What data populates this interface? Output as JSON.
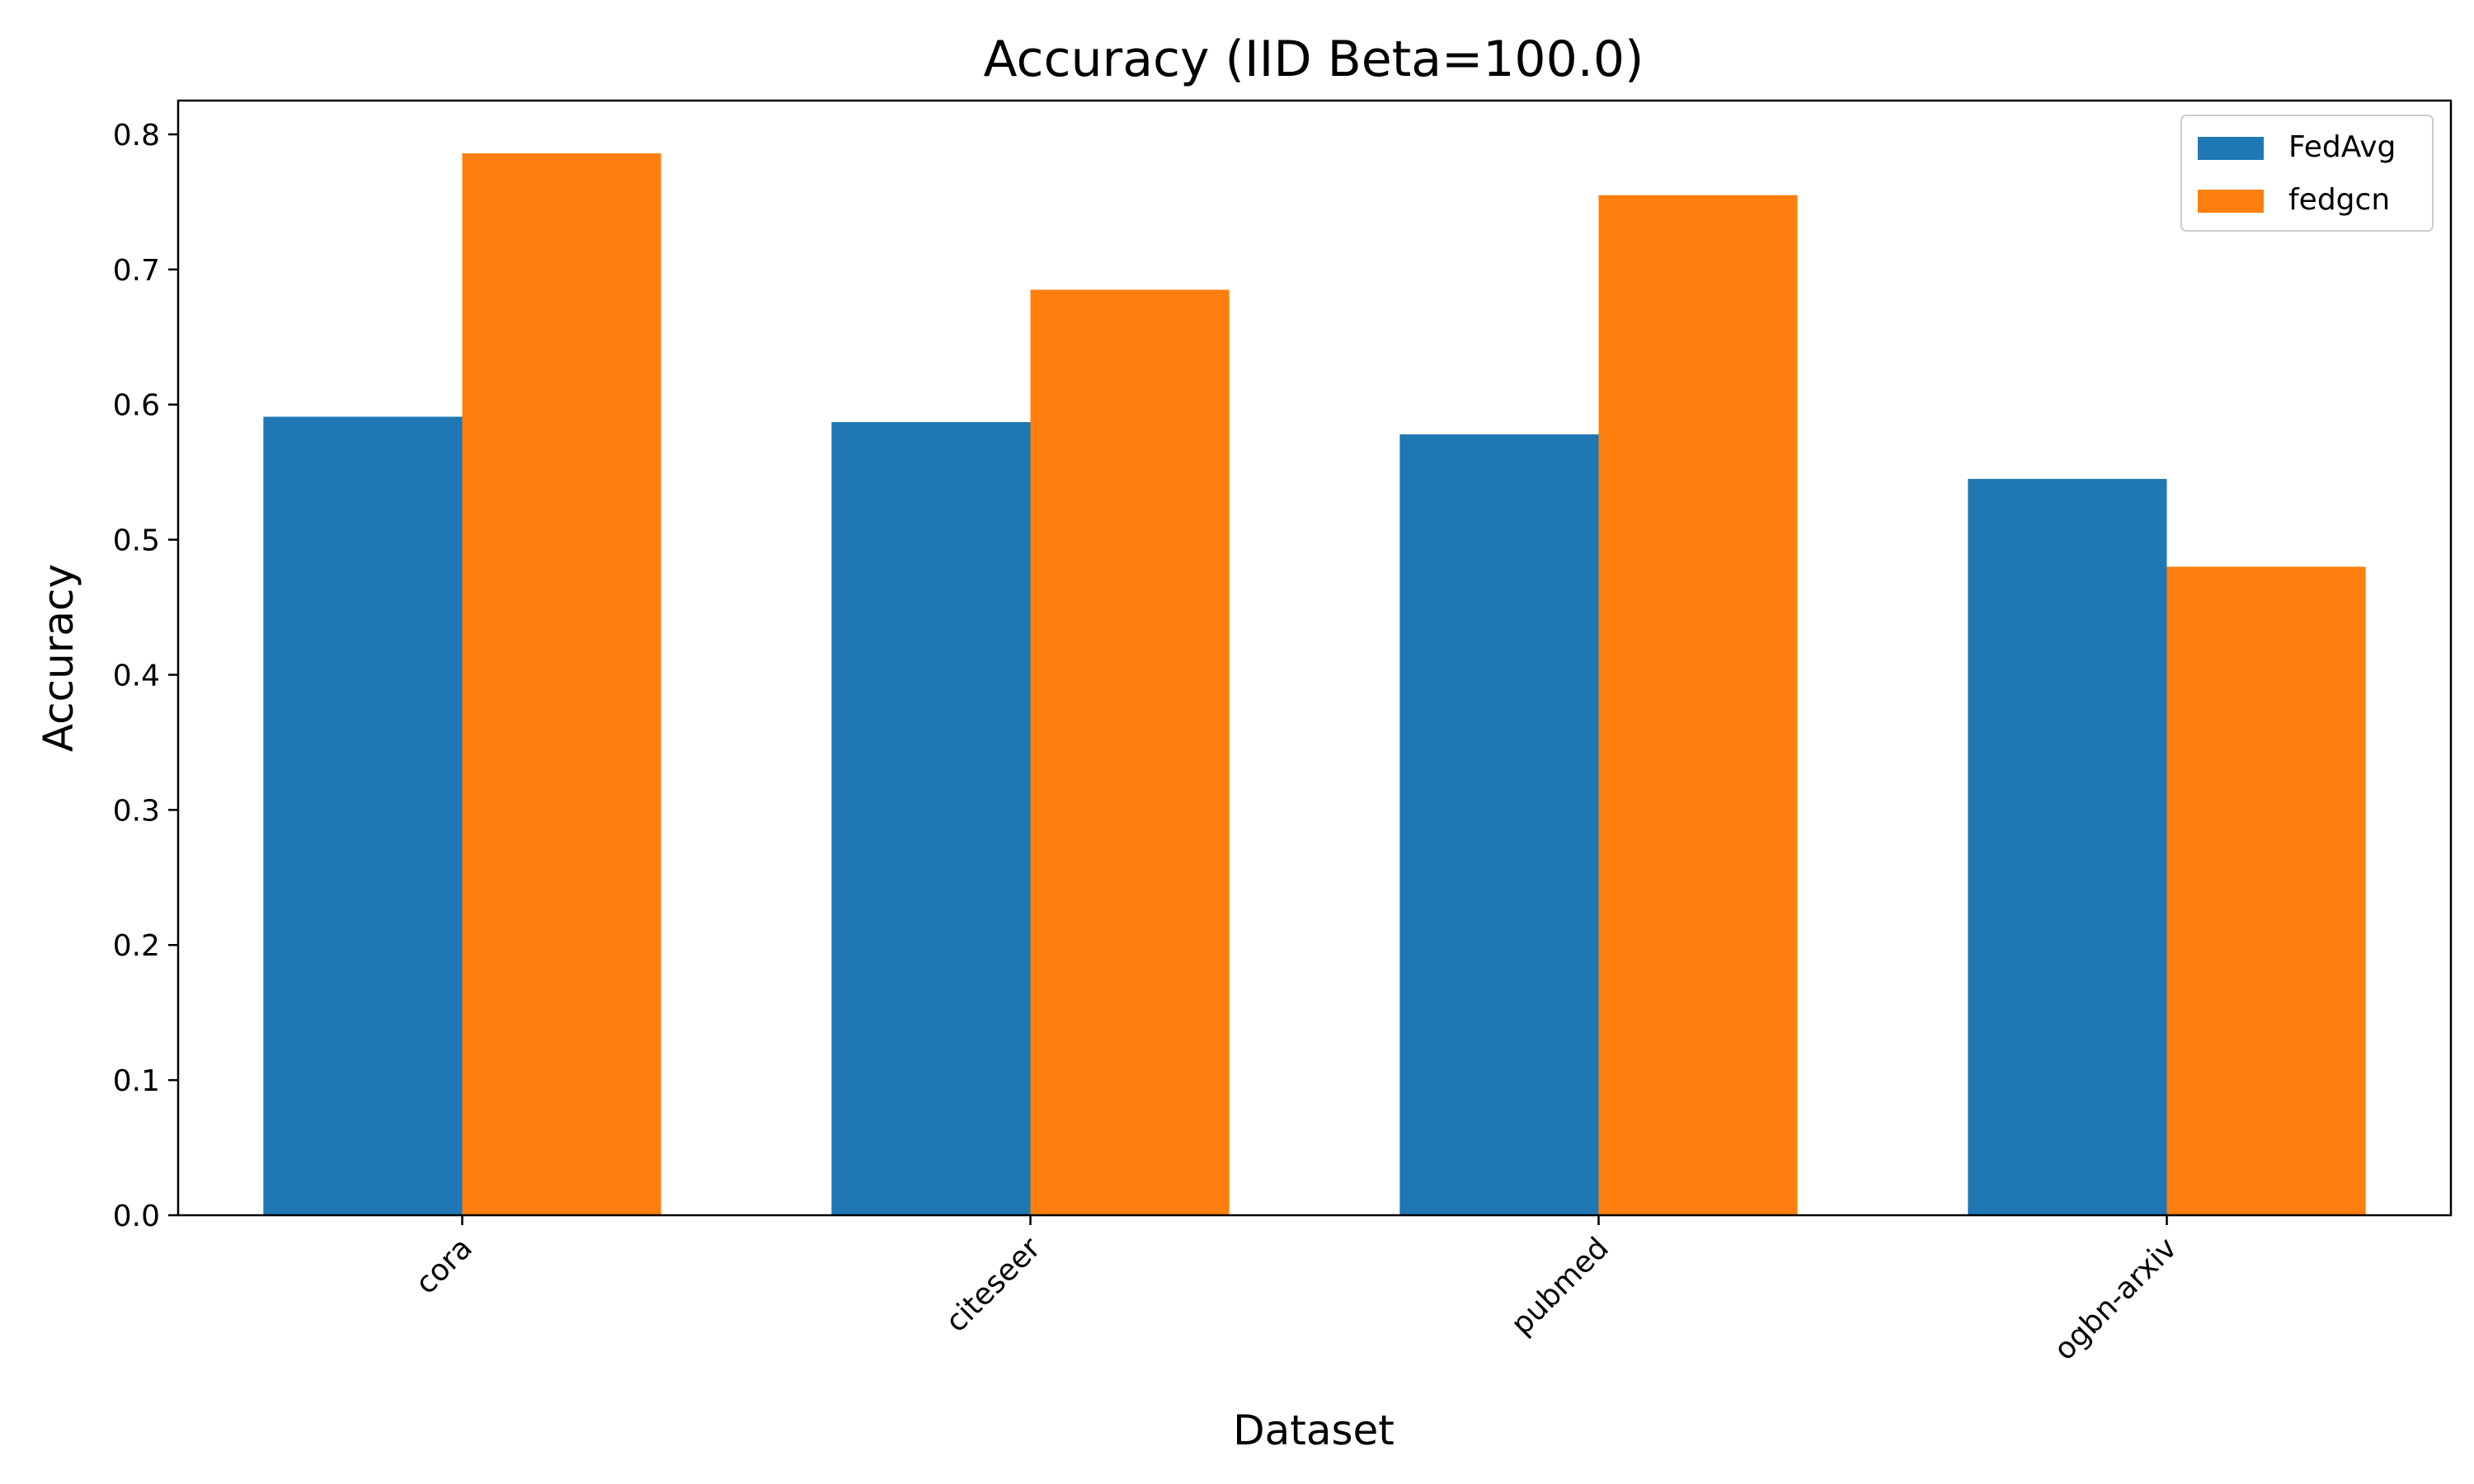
{
  "chart_data": {
    "type": "bar",
    "title": "Accuracy (IID Beta=100.0)",
    "xlabel": "Dataset",
    "ylabel": "Accuracy",
    "categories": [
      "cora",
      "citeseer",
      "pubmed",
      "ogbn-arxiv"
    ],
    "series": [
      {
        "name": "FedAvg",
        "color": "#1f77b4",
        "values": [
          0.591,
          0.587,
          0.578,
          0.545
        ]
      },
      {
        "name": "fedgcn",
        "color": "#ff7f0e",
        "values": [
          0.786,
          0.685,
          0.755,
          0.48
        ]
      }
    ],
    "ylim": [
      0,
      0.825
    ],
    "yticks": [
      "0.0",
      "0.1",
      "0.2",
      "0.3",
      "0.4",
      "0.5",
      "0.6",
      "0.7",
      "0.8"
    ],
    "ytick_values": [
      0,
      0.1,
      0.2,
      0.3,
      0.4,
      0.5,
      0.6,
      0.7,
      0.8
    ],
    "xtick_rotation_deg": 45,
    "grid": false,
    "legend_position": "top-right"
  }
}
